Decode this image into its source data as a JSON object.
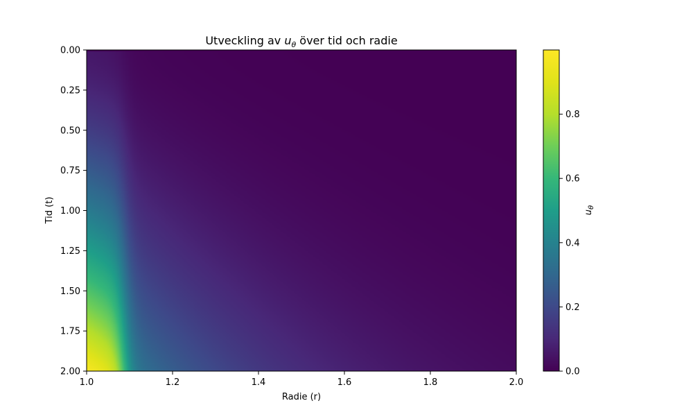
{
  "chart_data": {
    "type": "heatmap",
    "title_parts": {
      "before": "Utveckling av ",
      "var": "u",
      "sub": "θ",
      "after": " över tid och radie"
    },
    "xlabel": "Radie (r)",
    "ylabel": "Tid (t)",
    "xlim": [
      1.0,
      2.0
    ],
    "ylim": [
      2.0,
      0.0
    ],
    "x_ticks": [
      "1.0",
      "1.2",
      "1.4",
      "1.6",
      "1.8",
      "2.0"
    ],
    "y_ticks": [
      "0.00",
      "0.25",
      "0.50",
      "0.75",
      "1.00",
      "1.25",
      "1.50",
      "1.75",
      "2.00"
    ],
    "colorbar": {
      "label_var": "u",
      "label_sub": "θ",
      "range": [
        0.0,
        1.0
      ],
      "ticks": [
        "0.0",
        "0.2",
        "0.4",
        "0.6",
        "0.8"
      ],
      "colormap": "viridis"
    },
    "field_description_samples": {
      "r": [
        1.0,
        1.05,
        1.1,
        1.2,
        1.3,
        1.4,
        1.6,
        2.0
      ],
      "u_at_t_2": [
        0.98,
        0.95,
        0.45,
        0.22,
        0.12,
        0.07,
        0.03,
        0.01
      ],
      "u_at_t_1": [
        0.5,
        0.48,
        0.18,
        0.12,
        0.06,
        0.03,
        0.01,
        0.0
      ],
      "u_at_t_0_25": [
        0.12,
        0.12,
        0.05,
        0.02,
        0.01,
        0.0,
        0.0,
        0.0
      ]
    }
  }
}
